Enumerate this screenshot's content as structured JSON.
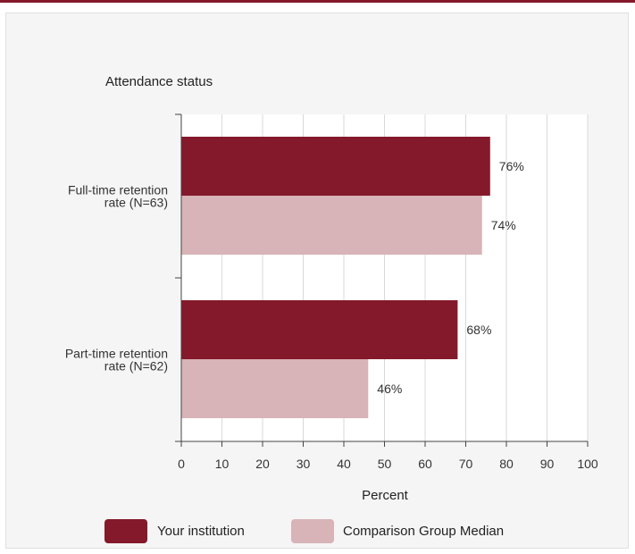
{
  "chart_data": {
    "type": "bar",
    "orientation": "horizontal",
    "ylabel": "Attendance status",
    "xlabel": "Percent",
    "xlim": [
      0,
      100
    ],
    "xticks": [
      0,
      10,
      20,
      30,
      40,
      50,
      60,
      70,
      80,
      90,
      100
    ],
    "grid": "vertical",
    "legend_position": "bottom",
    "categories": [
      [
        "Full-time retention",
        "rate (N=63)"
      ],
      [
        "Part-time retention",
        "rate (N=62)"
      ]
    ],
    "series": [
      {
        "name": "Your institution",
        "color": "#84192b",
        "values": [
          76,
          68
        ],
        "labels": [
          "76%",
          "68%"
        ]
      },
      {
        "name": "Comparison Group Median",
        "color": "#d8b3b8",
        "values": [
          74,
          46
        ],
        "labels": [
          "74%",
          "46%"
        ]
      }
    ]
  }
}
